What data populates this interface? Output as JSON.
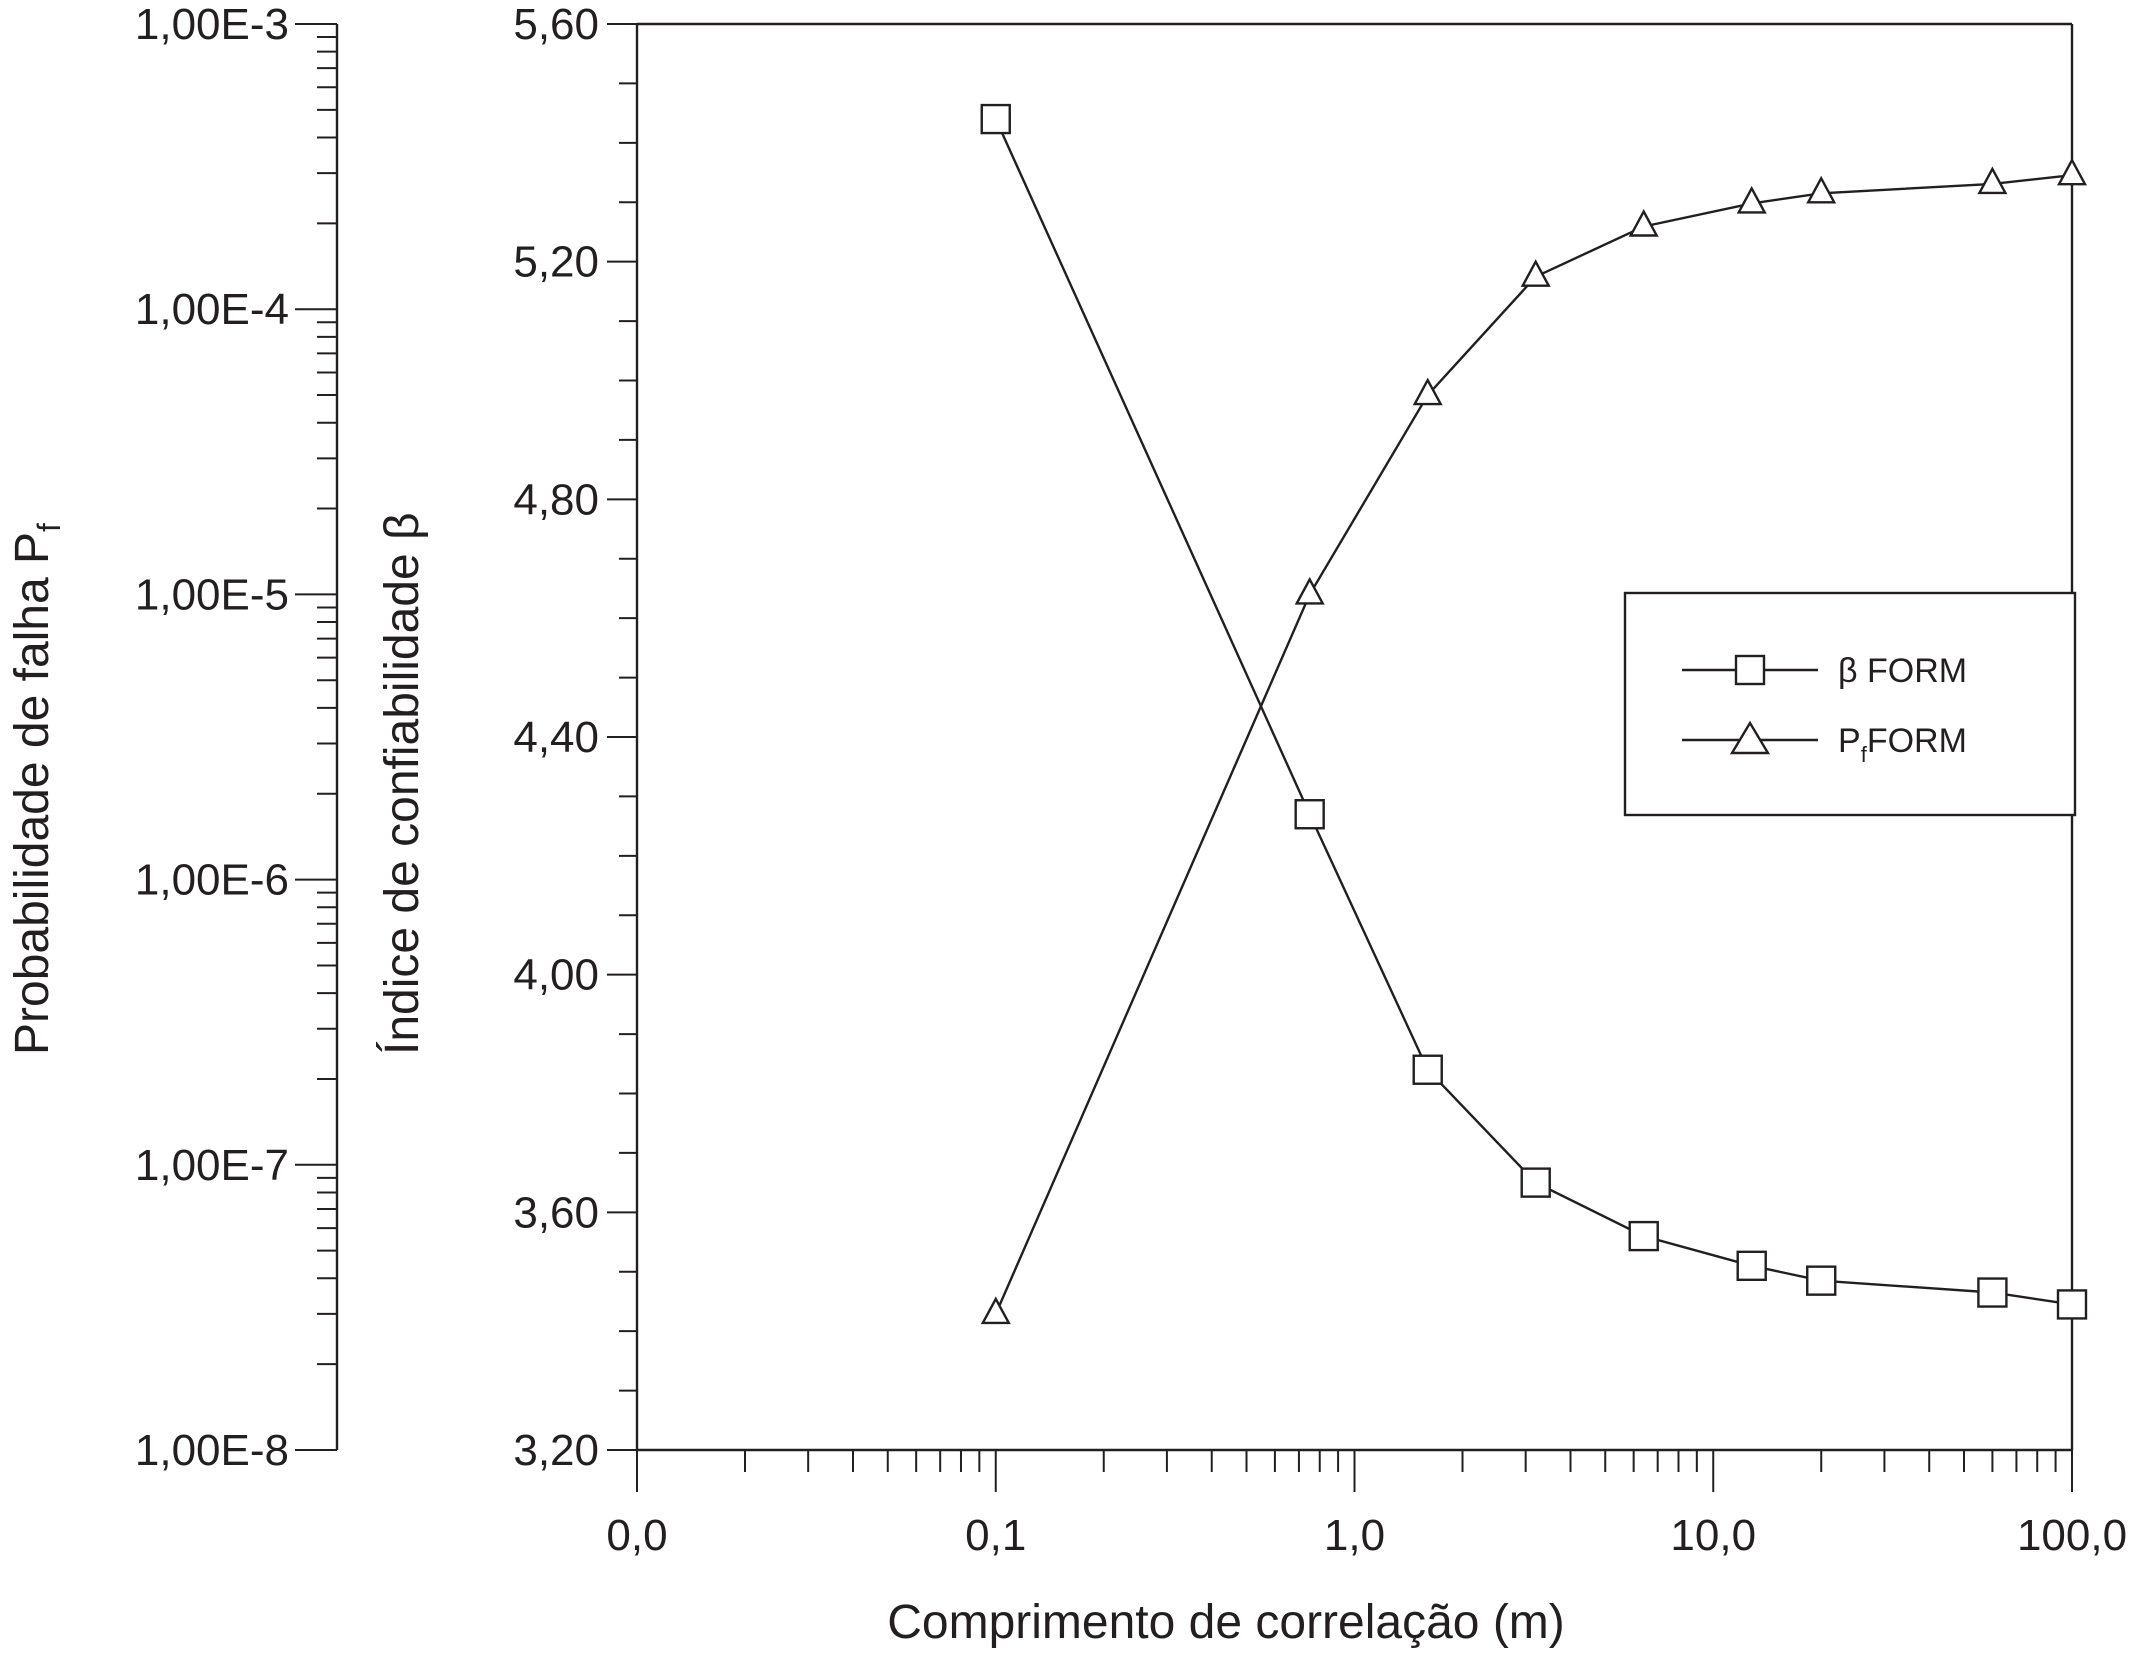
{
  "chart_data": {
    "type": "line",
    "xlabel": "Comprimento de correlação (m)",
    "x_scale": "log",
    "x_tick_labels": [
      "0,0",
      "0,1",
      "1,0",
      "10,0",
      "100,0"
    ],
    "xlim": [
      0.01,
      100
    ],
    "x": [
      0.1,
      0.75,
      1.6,
      3.2,
      6.4,
      12.8,
      20,
      60,
      100
    ],
    "y_left": {
      "label": "Probabilidade de falha  P",
      "label_subscript": "f",
      "scale": "log",
      "ylim": [
        1e-08,
        0.001
      ],
      "tick_labels": [
        "1,00E-3",
        "1,00E-4",
        "1,00E-5",
        "1,00E-6",
        "1,00E-7",
        "1,00E-8"
      ]
    },
    "y_right": {
      "label": "Índice de confiabilidade β",
      "ylim": [
        3.2,
        5.6
      ],
      "tick_labels": [
        "5,60",
        "5,20",
        "4,80",
        "4,40",
        "4,00",
        "3,60",
        "3,20"
      ]
    },
    "series": [
      {
        "name": "β FORM",
        "marker": "square",
        "axis": "beta",
        "values": [
          5.44,
          4.27,
          3.84,
          3.65,
          3.56,
          3.51,
          3.485,
          3.465,
          3.445
        ]
      },
      {
        "name": "P",
        "name_subscript": "f",
        "name_suffix": "FORM",
        "marker": "triangle",
        "axis": "probability",
        "values": [
          3e-08,
          1e-05,
          5e-05,
          0.00013,
          0.000195,
          0.000235,
          0.000255,
          0.000275,
          0.000295
        ]
      }
    ],
    "legend_position": "center-right",
    "grid": false
  }
}
